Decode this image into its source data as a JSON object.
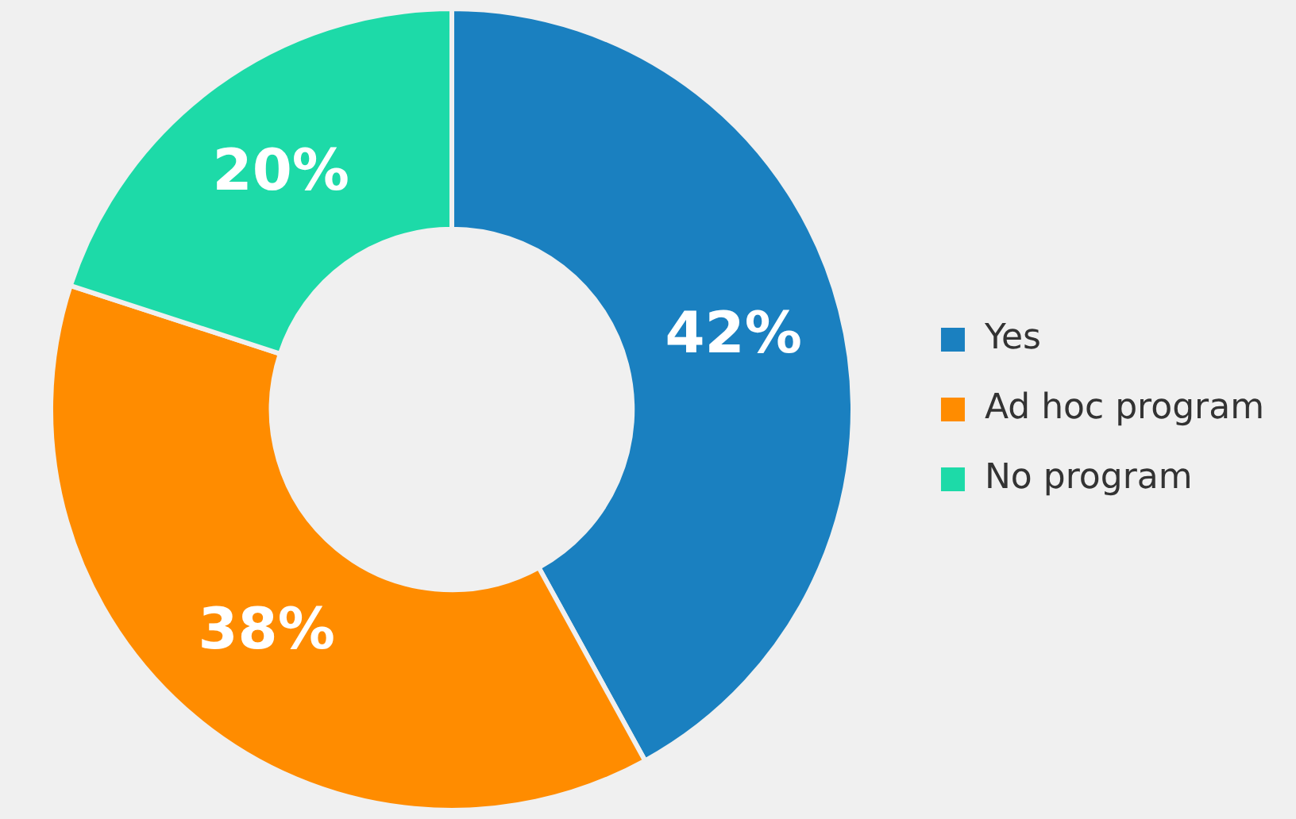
{
  "chart_data": {
    "type": "donut",
    "categories": [
      "Yes",
      "Ad hoc program",
      "No program"
    ],
    "values": [
      42,
      38,
      20
    ],
    "colors": [
      "#1a80c0",
      "#ff8c00",
      "#1ddaa8"
    ],
    "value_labels": [
      "42%",
      "38%",
      "20%"
    ],
    "legend": "right"
  }
}
